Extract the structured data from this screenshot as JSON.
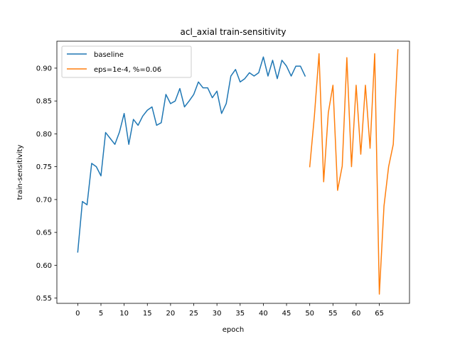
{
  "chart_data": {
    "type": "line",
    "title": "acl_axial train-sensitivity",
    "xlabel": "epoch",
    "ylabel": "train-sensitivity",
    "xlim": [
      -4.5,
      71.5
    ],
    "ylim": [
      0.542,
      0.941
    ],
    "xticks": [
      0,
      5,
      10,
      15,
      20,
      25,
      30,
      35,
      40,
      45,
      50,
      55,
      60,
      65
    ],
    "yticks": [
      0.55,
      0.6,
      0.65,
      0.7,
      0.75,
      0.8,
      0.85,
      0.9
    ],
    "grid": false,
    "legend_position": "top-left",
    "series": [
      {
        "name": "baseline",
        "color": "#1f77b4",
        "x": [
          0,
          1,
          2,
          3,
          4,
          5,
          6,
          7,
          8,
          9,
          10,
          11,
          12,
          13,
          14,
          15,
          16,
          17,
          18,
          19,
          20,
          21,
          22,
          23,
          24,
          25,
          26,
          27,
          28,
          29,
          30,
          31,
          32,
          33,
          34,
          35,
          36,
          37,
          38,
          39,
          40,
          41,
          42,
          43,
          44,
          45,
          46,
          47,
          48,
          49
        ],
        "y": [
          0.62,
          0.697,
          0.692,
          0.755,
          0.75,
          0.736,
          0.802,
          0.793,
          0.784,
          0.803,
          0.831,
          0.784,
          0.822,
          0.813,
          0.827,
          0.836,
          0.841,
          0.813,
          0.817,
          0.86,
          0.846,
          0.85,
          0.869,
          0.841,
          0.85,
          0.86,
          0.879,
          0.87,
          0.87,
          0.855,
          0.865,
          0.831,
          0.846,
          0.888,
          0.898,
          0.879,
          0.884,
          0.893,
          0.888,
          0.893,
          0.917,
          0.888,
          0.912,
          0.884,
          0.912,
          0.903,
          0.888,
          0.903,
          0.903,
          0.888
        ]
      },
      {
        "name": "eps=1e-4, %=0.06",
        "color": "#ff7f0e",
        "x": [
          50,
          51,
          52,
          53,
          54,
          55,
          56,
          57,
          58,
          59,
          60,
          61,
          62,
          63,
          64,
          65,
          66,
          67,
          68,
          69
        ],
        "y": [
          0.75,
          0.827,
          0.922,
          0.727,
          0.832,
          0.874,
          0.714,
          0.751,
          0.916,
          0.75,
          0.874,
          0.769,
          0.874,
          0.778,
          0.922,
          0.556,
          0.69,
          0.75,
          0.784,
          0.928
        ]
      }
    ]
  }
}
